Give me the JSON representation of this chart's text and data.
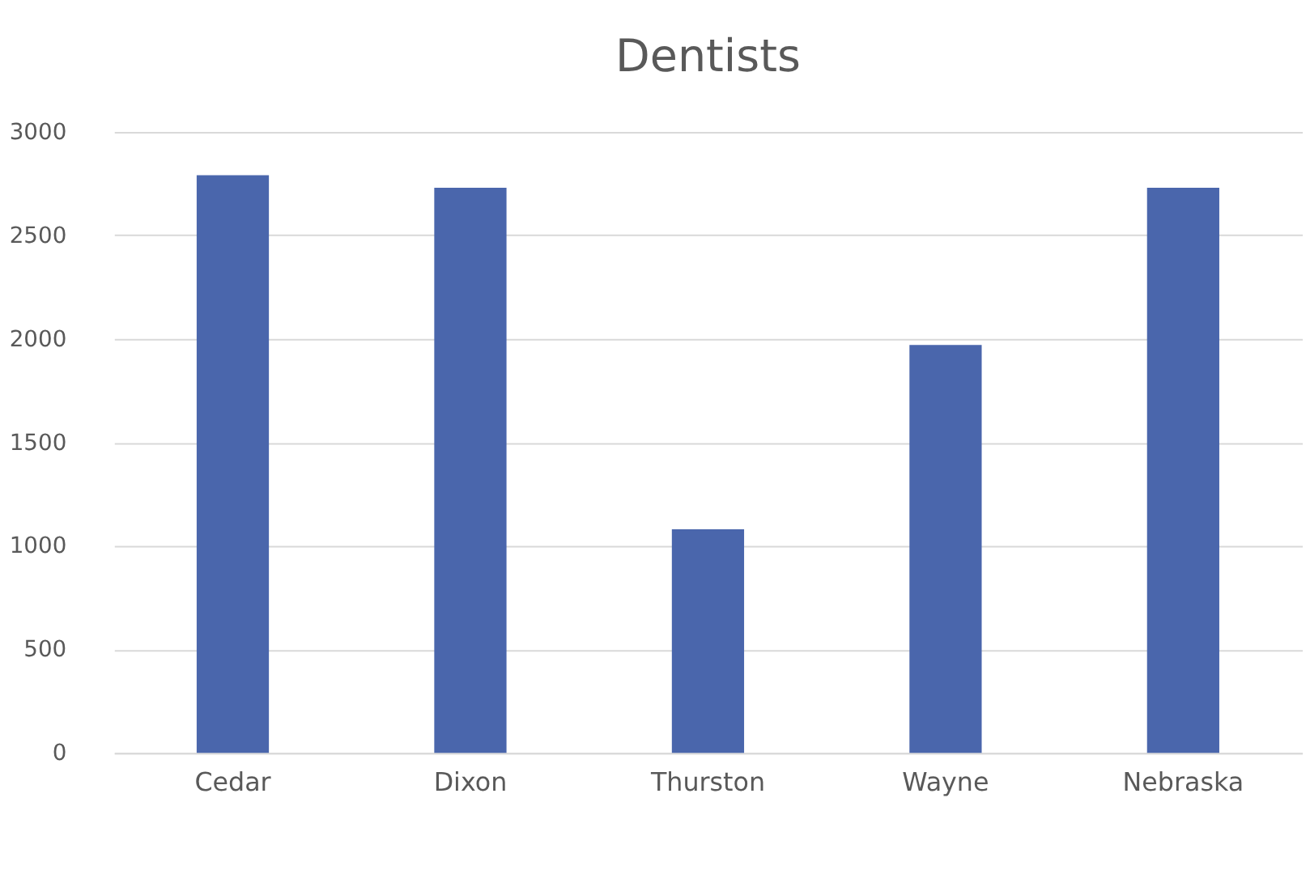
{
  "chart_data": {
    "type": "bar",
    "title": "Dentists",
    "categories": [
      "Cedar",
      "Dixon",
      "Thurston",
      "Wayne",
      "Nebraska"
    ],
    "values": [
      2790,
      2730,
      1080,
      1970,
      2730
    ],
    "color": "#4a66ac",
    "ylim": [
      0,
      3000
    ],
    "yticks": [
      0,
      500,
      1000,
      1500,
      2000,
      2500,
      3000
    ],
    "grid": "y"
  }
}
